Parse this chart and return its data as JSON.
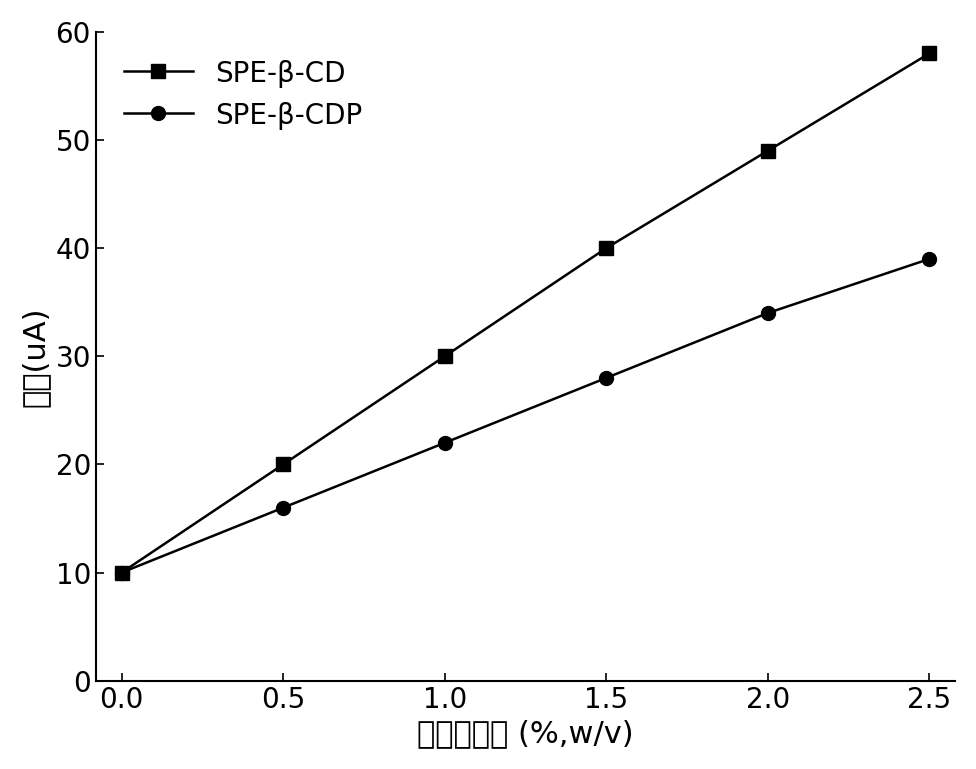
{
  "series": [
    {
      "label": "SPE-β-CD",
      "x": [
        0.0,
        0.5,
        1.0,
        1.5,
        2.0,
        2.5
      ],
      "y": [
        10,
        20,
        30,
        40,
        49,
        58
      ],
      "marker": "s",
      "markersize": 10,
      "color": "#000000",
      "linewidth": 1.8
    },
    {
      "label": "SPE-β-CDP",
      "x": [
        0.0,
        0.5,
        1.0,
        1.5,
        2.0,
        2.5
      ],
      "y": [
        10,
        16,
        22,
        28,
        34,
        39
      ],
      "marker": "o",
      "markersize": 10,
      "color": "#000000",
      "linewidth": 1.8
    }
  ],
  "xlabel": "添加剤浓度 (%,w/v)",
  "ylabel": "电流(uA)",
  "xlim": [
    0.0,
    2.5
  ],
  "ylim": [
    0,
    60
  ],
  "xticks": [
    0.0,
    0.5,
    1.0,
    1.5,
    2.0,
    2.5
  ],
  "yticks": [
    0,
    10,
    20,
    30,
    40,
    50,
    60
  ],
  "xlabel_fontsize": 22,
  "ylabel_fontsize": 22,
  "tick_fontsize": 20,
  "legend_fontsize": 20,
  "background_color": "#ffffff",
  "figsize": [
    9.76,
    7.69
  ],
  "dpi": 100
}
